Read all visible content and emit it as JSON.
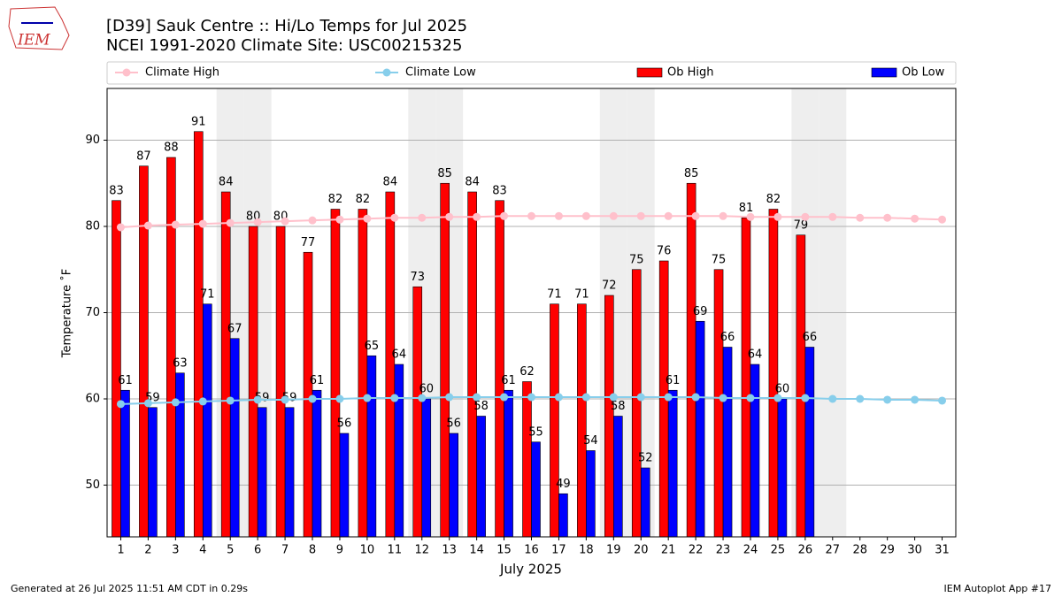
{
  "logo": "IEM",
  "chart_data": {
    "type": "bar",
    "title": "[D39] Sauk Centre :: Hi/Lo Temps for Jul 2025",
    "subtitle": "NCEI 1991-2020 Climate Site: USC00215325",
    "x_label": "July 2025",
    "y_label": "Temperature ˚F",
    "x": [
      1,
      2,
      3,
      4,
      5,
      6,
      7,
      8,
      9,
      10,
      11,
      12,
      13,
      14,
      15,
      16,
      17,
      18,
      19,
      20,
      21,
      22,
      23,
      24,
      25,
      26,
      27,
      28,
      29,
      30,
      31
    ],
    "xlim": [
      0.5,
      31.5
    ],
    "ylim": [
      44,
      96
    ],
    "yticks": [
      50,
      60,
      70,
      80,
      90
    ],
    "grid": true,
    "shaded_days": [
      5,
      6,
      12,
      13,
      19,
      20,
      26,
      27
    ],
    "series": [
      {
        "name": "Climate High",
        "kind": "line",
        "color": "#ffc0cb",
        "values": [
          79.9,
          80.1,
          80.2,
          80.3,
          80.4,
          80.5,
          80.6,
          80.7,
          80.8,
          80.9,
          81.0,
          81.0,
          81.1,
          81.1,
          81.2,
          81.2,
          81.2,
          81.2,
          81.2,
          81.2,
          81.2,
          81.2,
          81.2,
          81.1,
          81.1,
          81.1,
          81.1,
          81.0,
          81.0,
          80.9,
          80.8
        ]
      },
      {
        "name": "Climate Low",
        "kind": "line",
        "color": "#87ceeb",
        "values": [
          59.4,
          59.5,
          59.6,
          59.7,
          59.8,
          59.9,
          59.9,
          60.0,
          60.0,
          60.1,
          60.1,
          60.1,
          60.2,
          60.2,
          60.2,
          60.2,
          60.2,
          60.2,
          60.2,
          60.2,
          60.2,
          60.2,
          60.1,
          60.1,
          60.1,
          60.1,
          60.0,
          60.0,
          59.9,
          59.9,
          59.8
        ]
      },
      {
        "name": "Ob High",
        "kind": "bar",
        "color": "#ff0000",
        "values": [
          83,
          87,
          88,
          91,
          84,
          80,
          80,
          77,
          82,
          82,
          84,
          73,
          85,
          84,
          83,
          62,
          71,
          71,
          72,
          75,
          76,
          85,
          75,
          81,
          82,
          79,
          null,
          null,
          null,
          null,
          null
        ]
      },
      {
        "name": "Ob Low",
        "kind": "bar",
        "color": "#0000ff",
        "values": [
          61,
          59,
          63,
          71,
          67,
          59,
          59,
          61,
          56,
          65,
          64,
          60,
          56,
          58,
          61,
          55,
          49,
          54,
          58,
          52,
          61,
          69,
          66,
          64,
          60,
          66,
          null,
          null,
          null,
          null,
          null
        ]
      }
    ],
    "footer_left": "Generated at 26 Jul 2025 11:51 AM CDT in 0.29s",
    "footer_right": "IEM Autoplot App #17"
  }
}
